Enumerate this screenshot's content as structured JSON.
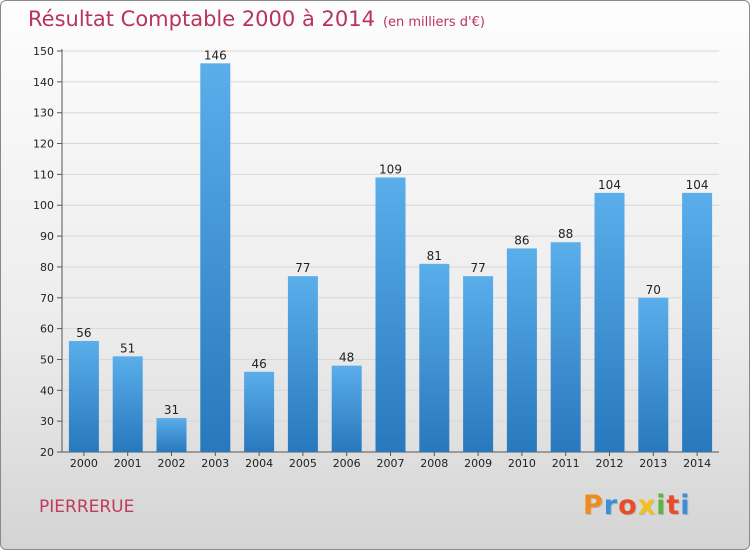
{
  "chart_data": {
    "type": "bar",
    "title": "Résultat Comptable 2000 à 2014",
    "subtitle": "(en milliers d'€)",
    "categories": [
      "2000",
      "2001",
      "2002",
      "2003",
      "2004",
      "2005",
      "2006",
      "2007",
      "2008",
      "2009",
      "2010",
      "2011",
      "2012",
      "2013",
      "2014"
    ],
    "values": [
      56,
      51,
      31,
      146,
      46,
      77,
      48,
      109,
      81,
      77,
      86,
      88,
      104,
      70,
      104
    ],
    "ylim": [
      20,
      150
    ],
    "yticks": [
      20,
      30,
      40,
      50,
      60,
      70,
      80,
      90,
      100,
      110,
      120,
      130,
      140,
      150
    ],
    "grid": true,
    "bar_color": "#3a8fd6"
  },
  "footer": {
    "town": "PIERRERUE",
    "logo": {
      "letters": [
        "P",
        "r",
        "o",
        "x",
        "i",
        "t",
        "i"
      ],
      "colors": [
        "#f08a1c",
        "#3b8fd8",
        "#e84c2b",
        "#f2c21a",
        "#5fb43c",
        "#e84c2b",
        "#3b8fd8"
      ]
    }
  }
}
